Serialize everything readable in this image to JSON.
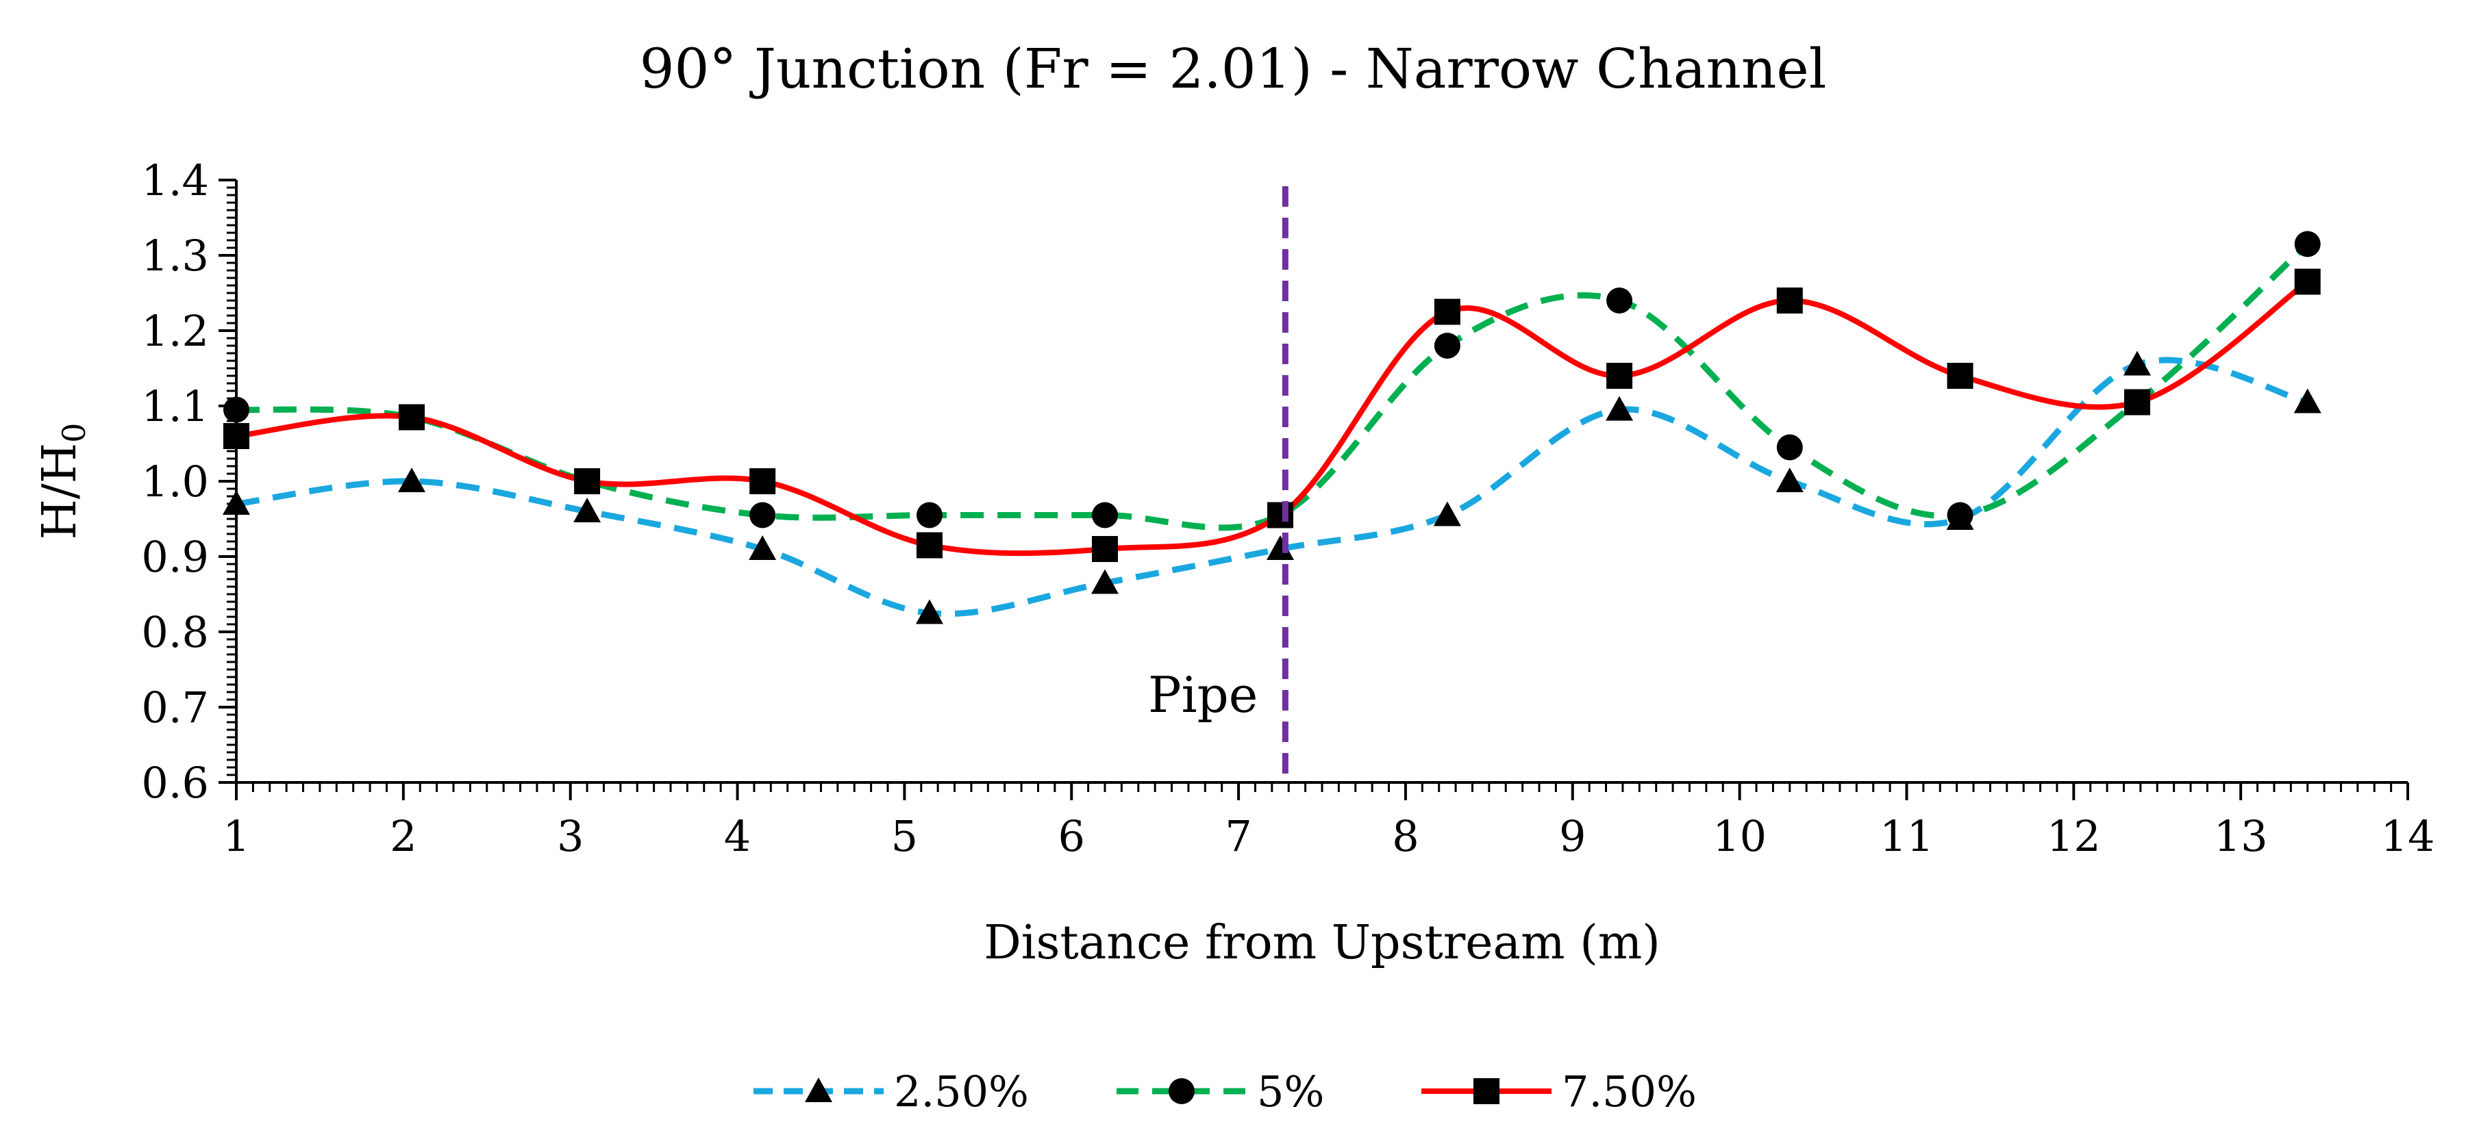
{
  "chart_data": {
    "type": "line",
    "title": "90° Junction (Fr = 2.01) - Narrow Channel",
    "xlabel": "Distance from Upstream (m)",
    "ylabel": "H/H",
    "ylabel_subscript": "0",
    "xlim": [
      1,
      14
    ],
    "ylim": [
      0.6,
      1.4
    ],
    "xticks": [
      1,
      2,
      3,
      4,
      5,
      6,
      7,
      8,
      9,
      10,
      11,
      12,
      13,
      14
    ],
    "yticks": [
      "0.6",
      "0.7",
      "0.8",
      "0.9",
      "1.0",
      "1.1",
      "1.2",
      "1.3",
      "1.4"
    ],
    "grid": false,
    "legend_position": "bottom",
    "x": [
      1.0,
      2.05,
      3.1,
      4.15,
      5.15,
      6.2,
      7.25,
      8.25,
      9.28,
      10.3,
      11.32,
      12.38,
      13.4
    ],
    "series": [
      {
        "name": "2.50%",
        "color": "#1AA7E0",
        "dash": "dashed",
        "marker": "triangle",
        "values": [
          0.97,
          1.0,
          0.96,
          0.91,
          0.825,
          0.865,
          0.91,
          0.955,
          1.095,
          1.0,
          0.95,
          1.155,
          1.105
        ]
      },
      {
        "name": "5%",
        "color": "#00B050",
        "dash": "dashed",
        "marker": "circle",
        "values": [
          1.095,
          1.085,
          1.0,
          0.955,
          0.955,
          0.955,
          0.955,
          1.18,
          1.24,
          1.045,
          0.955,
          1.105,
          1.315
        ]
      },
      {
        "name": "7.50%",
        "color": "#FF0000",
        "dash": "solid",
        "marker": "square",
        "values": [
          1.06,
          1.085,
          1.0,
          1.0,
          0.915,
          0.91,
          0.955,
          1.225,
          1.14,
          1.24,
          1.14,
          1.105,
          1.265
        ]
      }
    ],
    "annotations": [
      {
        "text": "Pipe",
        "x_line": 7.28,
        "color": "#7030A0",
        "style": "dashed vertical line"
      }
    ]
  }
}
